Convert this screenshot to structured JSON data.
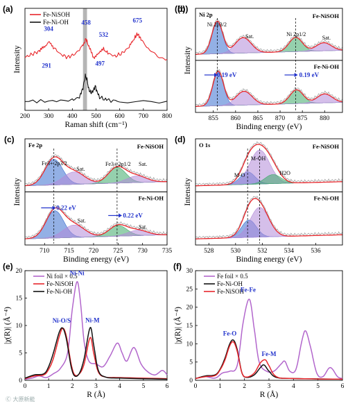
{
  "colors": {
    "red": "#e8262b",
    "black": "#111111",
    "purple": "#b266cc",
    "blue_fill": "#3a6fd0",
    "violet_fill": "#b38ad8",
    "green_fill": "#3eaa6a",
    "annot_blue": "#2233cc",
    "band": "#b5b5b5"
  },
  "panels": {
    "a": "(a)",
    "b": "(b)",
    "c": "(c)",
    "d": "(d)",
    "e": "(e)",
    "f": "(f)"
  },
  "watermark": "Ⓒ 大原新能",
  "chart_data": [
    {
      "id": "a",
      "type": "line",
      "xlabel": "Raman shift (cm⁻¹)",
      "ylabel": "Intensity",
      "xlim": [
        200,
        800
      ],
      "xticks": [
        "200",
        "300",
        "400",
        "500",
        "600",
        "700",
        "800"
      ],
      "band_x": [
        445,
        462
      ],
      "series": [
        {
          "name": "Fe-NiSOH",
          "color": "red",
          "points": [
            [
              200,
              0.52
            ],
            [
              230,
              0.55
            ],
            [
              260,
              0.58
            ],
            [
              280,
              0.62
            ],
            [
              300,
              0.67
            ],
            [
              320,
              0.62
            ],
            [
              350,
              0.55
            ],
            [
              380,
              0.52
            ],
            [
              410,
              0.55
            ],
            [
              440,
              0.62
            ],
            [
              458,
              0.7
            ],
            [
              470,
              0.62
            ],
            [
              490,
              0.52
            ],
            [
              510,
              0.55
            ],
            [
              532,
              0.6
            ],
            [
              550,
              0.56
            ],
            [
              580,
              0.53
            ],
            [
              610,
              0.56
            ],
            [
              640,
              0.62
            ],
            [
              660,
              0.7
            ],
            [
              675,
              0.75
            ],
            [
              690,
              0.7
            ],
            [
              720,
              0.6
            ],
            [
              760,
              0.54
            ],
            [
              800,
              0.5
            ]
          ]
        },
        {
          "name": "Fe-Ni-OH",
          "color": "black",
          "points": [
            [
              200,
              0.09
            ],
            [
              300,
              0.09
            ],
            [
              400,
              0.1
            ],
            [
              430,
              0.13
            ],
            [
              445,
              0.22
            ],
            [
              455,
              0.34
            ],
            [
              462,
              0.3
            ],
            [
              470,
              0.2
            ],
            [
              480,
              0.17
            ],
            [
              490,
              0.2
            ],
            [
              497,
              0.24
            ],
            [
              503,
              0.19
            ],
            [
              515,
              0.13
            ],
            [
              545,
              0.1
            ],
            [
              600,
              0.09
            ],
            [
              800,
              0.09
            ]
          ]
        }
      ],
      "annotations": [
        "304",
        "291",
        "458",
        "532",
        "675",
        "497"
      ]
    },
    {
      "id": "b",
      "type": "line",
      "title": "Ni 2p",
      "xlabel": "Binding energy (eV)",
      "ylabel": "Intensity",
      "xlim": [
        851,
        884
      ],
      "xticks": [
        "855",
        "860",
        "865",
        "870",
        "875",
        "880"
      ],
      "subplots": [
        {
          "sample": "Fe-NiSOH",
          "peak_labels": [
            "Ni 2p3/2",
            "Sat.",
            "Ni 2p1/2",
            "Sat."
          ],
          "ref_lines": [
            855.9,
            873.5
          ],
          "components": [
            {
              "center": 855.9,
              "width": 1.2,
              "height": 0.8,
              "fill": "blue_fill"
            },
            {
              "center": 861.7,
              "width": 1.8,
              "height": 0.38,
              "fill": "violet_fill"
            },
            {
              "center": 873.5,
              "width": 1.5,
              "height": 0.35,
              "fill": "green_fill"
            },
            {
              "center": 879.8,
              "width": 1.7,
              "height": 0.2,
              "fill": "violet_fill"
            }
          ]
        },
        {
          "sample": "Fe-Ni-OH",
          "shift_labels": [
            "0.19 eV",
            "0.19 eV"
          ],
          "ref_lines": [
            856.1,
            873.7
          ],
          "components": [
            {
              "center": 856.1,
              "width": 1.2,
              "height": 0.85,
              "fill": "blue_fill"
            },
            {
              "center": 861.9,
              "width": 1.8,
              "height": 0.34,
              "fill": "violet_fill"
            },
            {
              "center": 873.7,
              "width": 1.5,
              "height": 0.34,
              "fill": "green_fill"
            },
            {
              "center": 880.0,
              "width": 1.7,
              "height": 0.22,
              "fill": "violet_fill"
            }
          ]
        }
      ]
    },
    {
      "id": "c",
      "type": "line",
      "title": "Fe 2p",
      "xlabel": "Binding energy (eV)",
      "ylabel": "Intensity",
      "xlim": [
        706,
        735
      ],
      "xticks": [
        "710",
        "715",
        "720",
        "725",
        "730",
        "735"
      ],
      "subplots": [
        {
          "sample": "Fe-NiSOH",
          "peak_labels": [
            "Fe3+ 2p3/2",
            "Sat.",
            "Fe3+ 2p1/2",
            "Sat."
          ],
          "ref_lines": [
            711.9,
            724.8
          ],
          "components": [
            {
              "center": 711.9,
              "width": 1.8,
              "height": 0.62,
              "fill": "blue_fill"
            },
            {
              "center": 716.0,
              "width": 2.2,
              "height": 0.3,
              "fill": "violet_fill"
            },
            {
              "center": 724.8,
              "width": 1.8,
              "height": 0.38,
              "fill": "green_fill"
            },
            {
              "center": 728.8,
              "width": 2.0,
              "height": 0.16,
              "fill": "violet_fill"
            }
          ]
        },
        {
          "sample": "Fe-Ni-OH",
          "shift_labels": [
            "0.22 eV",
            "0.22 eV"
          ],
          "peak_labels": [
            "Sat.",
            "Sat."
          ],
          "ref_lines": [
            712.1,
            725.0
          ],
          "components": [
            {
              "center": 712.1,
              "width": 1.8,
              "height": 0.66,
              "fill": "blue_fill"
            },
            {
              "center": 716.0,
              "width": 2.2,
              "height": 0.3,
              "fill": "violet_fill"
            },
            {
              "center": 725.0,
              "width": 1.8,
              "height": 0.26,
              "fill": "green_fill"
            },
            {
              "center": 729.0,
              "width": 2.0,
              "height": 0.13,
              "fill": "violet_fill"
            }
          ]
        }
      ]
    },
    {
      "id": "d",
      "type": "line",
      "title": "O 1s",
      "xlabel": "Binding energy (eV)",
      "ylabel": "Intensity",
      "xlim": [
        527,
        538
      ],
      "xticks": [
        "528",
        "530",
        "532",
        "534",
        "536"
      ],
      "subplots": [
        {
          "sample": "Fe-NiSOH",
          "peak_labels": [
            "M-O",
            "M-OH",
            "H2O"
          ],
          "ref_lines": [
            530.9,
            531.8
          ],
          "components": [
            {
              "center": 530.9,
              "width": 0.55,
              "height": 0.3,
              "fill": "blue_fill"
            },
            {
              "center": 531.8,
              "width": 0.75,
              "height": 0.82,
              "fill": "violet_fill"
            },
            {
              "center": 532.8,
              "width": 0.6,
              "height": 0.22,
              "fill": "green_fill"
            }
          ]
        },
        {
          "sample": "Fe-Ni-OH",
          "ref_lines": [
            530.9,
            531.8
          ],
          "components": [
            {
              "center": 531.0,
              "width": 0.55,
              "height": 0.42,
              "fill": "blue_fill"
            },
            {
              "center": 531.8,
              "width": 0.7,
              "height": 0.72,
              "fill": "violet_fill"
            }
          ]
        }
      ]
    },
    {
      "id": "e",
      "type": "line",
      "xlabel": "R (Å)",
      "ylabel": "|χ(R)| (Å⁻⁴)",
      "xlim": [
        0,
        6
      ],
      "ylim": [
        0,
        20
      ],
      "xticks": [
        "0",
        "1",
        "2",
        "3",
        "4",
        "5",
        "6"
      ],
      "yticks": [
        "0",
        "5",
        "10",
        "15",
        "20"
      ],
      "series": [
        {
          "name": "Ni foil × 0.5",
          "color": "purple",
          "points": [
            [
              0,
              0.2
            ],
            [
              0.3,
              0.4
            ],
            [
              0.6,
              0.8
            ],
            [
              0.9,
              0.5
            ],
            [
              1.2,
              1.2
            ],
            [
              1.5,
              2.2
            ],
            [
              1.8,
              5.0
            ],
            [
              2.0,
              13.0
            ],
            [
              2.2,
              18.0
            ],
            [
              2.35,
              14.0
            ],
            [
              2.5,
              7.0
            ],
            [
              2.7,
              3.5
            ],
            [
              3.0,
              3.0
            ],
            [
              3.3,
              2.5
            ],
            [
              3.6,
              4.5
            ],
            [
              3.9,
              6.8
            ],
            [
              4.1,
              5.0
            ],
            [
              4.3,
              3.5
            ],
            [
              4.6,
              6.0
            ],
            [
              4.9,
              3.0
            ],
            [
              5.2,
              1.5
            ],
            [
              5.5,
              1.0
            ],
            [
              5.8,
              1.8
            ],
            [
              6,
              1.0
            ]
          ]
        },
        {
          "name": "Fe-NiSOH",
          "color": "red",
          "points": [
            [
              0,
              0.3
            ],
            [
              0.4,
              0.8
            ],
            [
              0.8,
              1.0
            ],
            [
              1.0,
              2.0
            ],
            [
              1.2,
              4.0
            ],
            [
              1.45,
              8.0
            ],
            [
              1.6,
              9.5
            ],
            [
              1.75,
              8.0
            ],
            [
              1.95,
              3.0
            ],
            [
              2.1,
              1.0
            ],
            [
              2.3,
              1.2
            ],
            [
              2.5,
              3.0
            ],
            [
              2.75,
              7.8
            ],
            [
              2.9,
              5.0
            ],
            [
              3.1,
              1.5
            ],
            [
              3.4,
              0.6
            ],
            [
              4.0,
              0.5
            ],
            [
              6,
              0.3
            ]
          ]
        },
        {
          "name": "Fe-Ni-OH",
          "color": "black",
          "points": [
            [
              0,
              0.4
            ],
            [
              0.4,
              1.0
            ],
            [
              0.8,
              1.2
            ],
            [
              1.0,
              2.5
            ],
            [
              1.2,
              5.0
            ],
            [
              1.45,
              8.8
            ],
            [
              1.6,
              9.5
            ],
            [
              1.75,
              7.5
            ],
            [
              1.95,
              2.5
            ],
            [
              2.1,
              0.8
            ],
            [
              2.3,
              1.3
            ],
            [
              2.5,
              4.0
            ],
            [
              2.75,
              9.6
            ],
            [
              2.9,
              6.5
            ],
            [
              3.1,
              1.8
            ],
            [
              3.4,
              0.6
            ],
            [
              4.0,
              0.4
            ],
            [
              6,
              0.2
            ]
          ]
        }
      ],
      "annotations": [
        "Ni-Ni",
        "Ni-O/S",
        "Ni-M"
      ]
    },
    {
      "id": "f",
      "type": "line",
      "xlabel": "R (Å)",
      "ylabel": "|χ(R)| (Å⁻⁴)",
      "xlim": [
        0,
        6
      ],
      "ylim": [
        0,
        30
      ],
      "xticks": [
        "0",
        "1",
        "2",
        "3",
        "4",
        "5",
        "6"
      ],
      "yticks": [
        "0",
        "5",
        "10",
        "15",
        "20",
        "25",
        "30"
      ],
      "series": [
        {
          "name": "Fe foil × 0.5",
          "color": "purple",
          "points": [
            [
              0,
              0.5
            ],
            [
              0.4,
              1.0
            ],
            [
              0.8,
              0.6
            ],
            [
              1.1,
              2.0
            ],
            [
              1.4,
              2.5
            ],
            [
              1.7,
              4.0
            ],
            [
              1.95,
              16.0
            ],
            [
              2.2,
              22.2
            ],
            [
              2.4,
              14.0
            ],
            [
              2.6,
              5.0
            ],
            [
              2.9,
              2.5
            ],
            [
              3.2,
              2.5
            ],
            [
              3.5,
              4.5
            ],
            [
              3.65,
              5.2
            ],
            [
              3.85,
              2.5
            ],
            [
              4.1,
              3.0
            ],
            [
              4.35,
              11.0
            ],
            [
              4.5,
              13.5
            ],
            [
              4.7,
              9.0
            ],
            [
              4.95,
              2.0
            ],
            [
              5.2,
              1.0
            ],
            [
              5.5,
              3.5
            ],
            [
              5.8,
              1.0
            ],
            [
              6,
              0.5
            ]
          ]
        },
        {
          "name": "Fe-Ni-OH",
          "color": "black",
          "points": [
            [
              0,
              0.5
            ],
            [
              0.4,
              1.2
            ],
            [
              0.8,
              1.5
            ],
            [
              1.0,
              3.0
            ],
            [
              1.2,
              6.0
            ],
            [
              1.4,
              10.0
            ],
            [
              1.55,
              11.0
            ],
            [
              1.7,
              8.5
            ],
            [
              1.9,
              2.0
            ],
            [
              2.1,
              0.8
            ],
            [
              2.4,
              1.5
            ],
            [
              2.65,
              3.5
            ],
            [
              2.8,
              4.2
            ],
            [
              3.0,
              2.5
            ],
            [
              3.3,
              0.8
            ],
            [
              4.0,
              0.5
            ],
            [
              6,
              0.3
            ]
          ]
        },
        {
          "name": "Fe-NiSOH",
          "color": "red",
          "points": [
            [
              0,
              0.5
            ],
            [
              0.4,
              1.0
            ],
            [
              0.8,
              1.3
            ],
            [
              1.0,
              2.8
            ],
            [
              1.2,
              5.5
            ],
            [
              1.4,
              9.5
            ],
            [
              1.55,
              10.5
            ],
            [
              1.7,
              8.0
            ],
            [
              1.9,
              2.0
            ],
            [
              2.1,
              0.9
            ],
            [
              2.4,
              2.0
            ],
            [
              2.65,
              4.8
            ],
            [
              2.85,
              5.6
            ],
            [
              3.0,
              4.0
            ],
            [
              3.3,
              1.0
            ],
            [
              4.0,
              0.5
            ],
            [
              6,
              0.3
            ]
          ]
        }
      ],
      "annotations": [
        "Fe-Fe",
        "Fe-O",
        "Fe-M"
      ]
    }
  ]
}
